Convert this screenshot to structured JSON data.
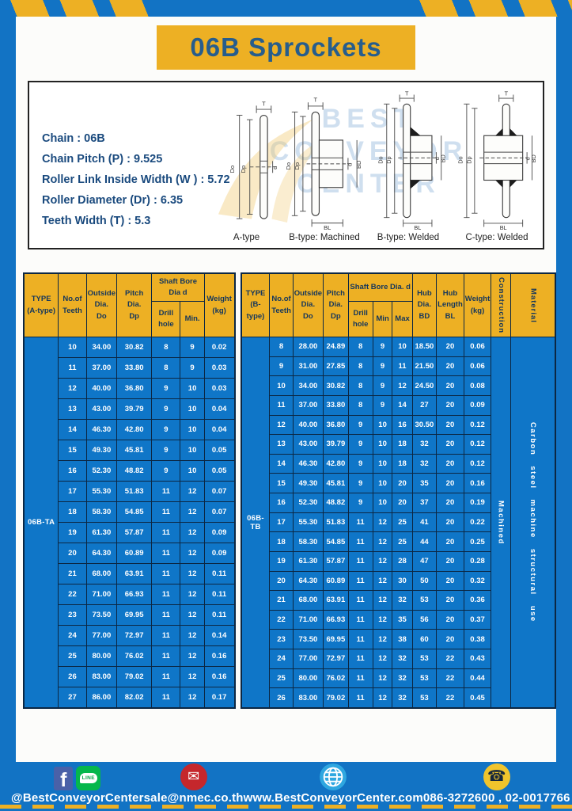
{
  "page": {
    "title": "06B Sprockets"
  },
  "specs": {
    "lines": [
      "Chain  : 06B",
      "Chain Pitch (P)  :  9.525",
      "Roller Link Inside Width (W )  :  5.72",
      "Roller Diameter (Dr)  : 6.35",
      "Teeth Width (T)  :  5.3"
    ]
  },
  "watermark": {
    "lines": [
      "BEST",
      "CONVEYOR",
      "CENTER"
    ]
  },
  "drawings": {
    "dims": {
      "t": "T",
      "do": "Do",
      "dp": "Dp",
      "d": "d",
      "bd": "BD",
      "bl": "BL"
    },
    "captions": [
      "A-type",
      "B-type: Machined",
      "B-type: Welded",
      "C-type: Welded"
    ]
  },
  "tables": {
    "a": {
      "type_label": "06B-TA",
      "h_type": "TYPE\n(A-type)",
      "h_teeth": "No.of\nTeeth",
      "h_outside": "Outside\nDia.\nDo",
      "h_pitch": "Pitch Dia.\nDp",
      "h_shaft": "Shaft Bore Dia d",
      "h_drill": "Drill hole",
      "h_min": "Min.",
      "h_weight": "Weight\n(kg)",
      "rows": [
        [
          "10",
          "34.00",
          "30.82",
          "8",
          "9",
          "0.02"
        ],
        [
          "11",
          "37.00",
          "33.80",
          "8",
          "9",
          "0.03"
        ],
        [
          "12",
          "40.00",
          "36.80",
          "9",
          "10",
          "0.03"
        ],
        [
          "13",
          "43.00",
          "39.79",
          "9",
          "10",
          "0.04"
        ],
        [
          "14",
          "46.30",
          "42.80",
          "9",
          "10",
          "0.04"
        ],
        [
          "15",
          "49.30",
          "45.81",
          "9",
          "10",
          "0.05"
        ],
        [
          "16",
          "52.30",
          "48.82",
          "9",
          "10",
          "0.05"
        ],
        [
          "17",
          "55.30",
          "51.83",
          "11",
          "12",
          "0.07"
        ],
        [
          "18",
          "58.30",
          "54.85",
          "11",
          "12",
          "0.07"
        ],
        [
          "19",
          "61.30",
          "57.87",
          "11",
          "12",
          "0.09"
        ],
        [
          "20",
          "64.30",
          "60.89",
          "11",
          "12",
          "0.09"
        ],
        [
          "21",
          "68.00",
          "63.91",
          "11",
          "12",
          "0.11"
        ],
        [
          "22",
          "71.00",
          "66.93",
          "11",
          "12",
          "0.11"
        ],
        [
          "23",
          "73.50",
          "69.95",
          "11",
          "12",
          "0.11"
        ],
        [
          "24",
          "77.00",
          "72.97",
          "11",
          "12",
          "0.14"
        ],
        [
          "25",
          "80.00",
          "76.02",
          "11",
          "12",
          "0.16"
        ],
        [
          "26",
          "83.00",
          "79.02",
          "11",
          "12",
          "0.16"
        ],
        [
          "27",
          "86.00",
          "82.02",
          "11",
          "12",
          "0.17"
        ]
      ]
    },
    "b": {
      "type_label": "06B-TB",
      "h_type": "TYPE\n(B-type)",
      "h_teeth": "No.of\nTeeth",
      "h_outside": "Outside\nDia.\nDo",
      "h_pitch": "Pitch\nDia.\nDp",
      "h_shaft": "Shaft Bore Dia.  d",
      "h_drill": "Drill hole",
      "h_min": "Min",
      "h_max": "Max",
      "h_hubdia": "Hub\nDia.\nBD",
      "h_hublen": "Hub\nLength\nBL",
      "h_weight": "Weight\n(kg)",
      "h_construction": "Construction",
      "h_material": "Material",
      "trailing": [
        {
          "text": "Machined",
          "name": "construction-cell"
        },
        {
          "text": "Carbon steel machine structural use",
          "name": "material-cell"
        }
      ],
      "rows": [
        [
          "8",
          "28.00",
          "24.89",
          "8",
          "9",
          "10",
          "18.50",
          "20",
          "0.06"
        ],
        [
          "9",
          "31.00",
          "27.85",
          "8",
          "9",
          "11",
          "21.50",
          "20",
          "0.06"
        ],
        [
          "10",
          "34.00",
          "30.82",
          "8",
          "9",
          "12",
          "24.50",
          "20",
          "0.08"
        ],
        [
          "11",
          "37.00",
          "33.80",
          "8",
          "9",
          "14",
          "27",
          "20",
          "0.09"
        ],
        [
          "12",
          "40.00",
          "36.80",
          "9",
          "10",
          "16",
          "30.50",
          "20",
          "0.12"
        ],
        [
          "13",
          "43.00",
          "39.79",
          "9",
          "10",
          "18",
          "32",
          "20",
          "0.12"
        ],
        [
          "14",
          "46.30",
          "42.80",
          "9",
          "10",
          "18",
          "32",
          "20",
          "0.12"
        ],
        [
          "15",
          "49.30",
          "45.81",
          "9",
          "10",
          "20",
          "35",
          "20",
          "0.16"
        ],
        [
          "16",
          "52.30",
          "48.82",
          "9",
          "10",
          "20",
          "37",
          "20",
          "0.19"
        ],
        [
          "17",
          "55.30",
          "51.83",
          "11",
          "12",
          "25",
          "41",
          "20",
          "0.22"
        ],
        [
          "18",
          "58.30",
          "54.85",
          "11",
          "12",
          "25",
          "44",
          "20",
          "0.25"
        ],
        [
          "19",
          "61.30",
          "57.87",
          "11",
          "12",
          "28",
          "47",
          "20",
          "0.28"
        ],
        [
          "20",
          "64.30",
          "60.89",
          "11",
          "12",
          "30",
          "50",
          "20",
          "0.32"
        ],
        [
          "21",
          "68.00",
          "63.91",
          "11",
          "12",
          "32",
          "53",
          "20",
          "0.36"
        ],
        [
          "22",
          "71.00",
          "66.93",
          "11",
          "12",
          "35",
          "56",
          "20",
          "0.37"
        ],
        [
          "23",
          "73.50",
          "69.95",
          "11",
          "12",
          "38",
          "60",
          "20",
          "0.38"
        ],
        [
          "24",
          "77.00",
          "72.97",
          "11",
          "12",
          "32",
          "53",
          "22",
          "0.43"
        ],
        [
          "25",
          "80.00",
          "76.02",
          "11",
          "12",
          "32",
          "53",
          "22",
          "0.44"
        ],
        [
          "26",
          "83.00",
          "79.02",
          "11",
          "12",
          "32",
          "53",
          "22",
          "0.45"
        ]
      ]
    }
  },
  "footer": {
    "facebook_letter": "f",
    "line_text": "LINE",
    "social_label": "@BestConveyorCenter",
    "email_label": "sale@nmec.co.th",
    "website_label": "www.BestConveyorCenter.com",
    "phone_label": "086-3272600 , 02-0017766"
  },
  "icons": {
    "email": "✉",
    "phone": "☎"
  },
  "colors": {
    "frame_blue": "#1273c4",
    "table_blue": "#0f76c8",
    "accent_yellow": "#edb024",
    "grid_navy": "#0c2743",
    "title_blue": "#275d8c"
  }
}
